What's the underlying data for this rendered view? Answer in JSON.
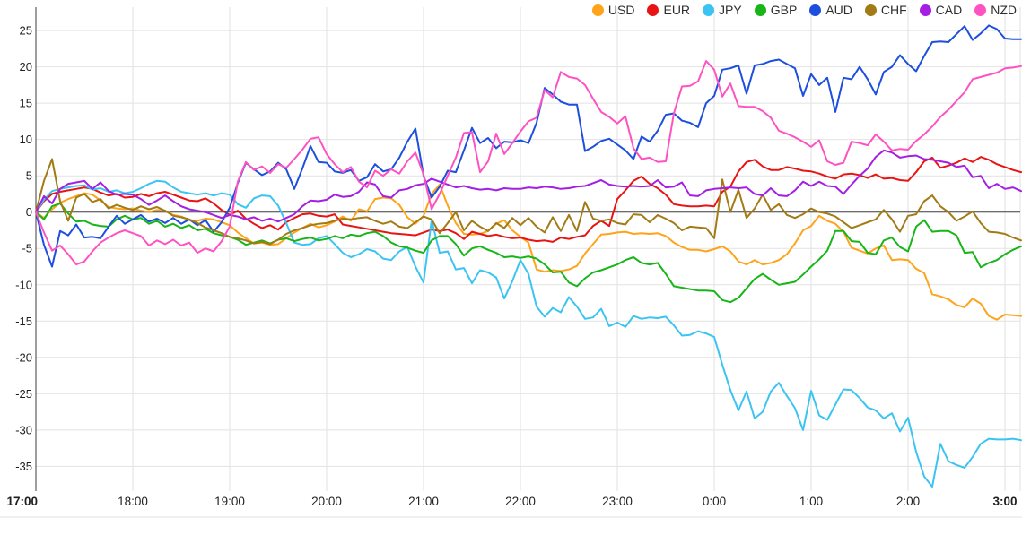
{
  "page": {
    "background": "#ffffff"
  },
  "colors": {
    "grid": "#e2e2e2",
    "axis": "#3c3c3c",
    "tick_text": "#1f1f1f"
  },
  "chart_data": {
    "type": "line",
    "title": "",
    "xlabel": "",
    "ylabel": "",
    "x_axis": {
      "start_label": "17:00",
      "step_minutes": 5,
      "points_per_hour": 12,
      "tick_labels": [
        "17:00",
        "18:00",
        "19:00",
        "20:00",
        "21:00",
        "22:00",
        "23:00",
        "0:00",
        "1:00",
        "2:00",
        "3:00"
      ],
      "bold_tick_labels": [
        "17:00",
        "3:00"
      ]
    },
    "y_axis": {
      "min": -35,
      "max": 25,
      "tick_step": 5,
      "zero_line": true
    },
    "grid": {
      "horizontal": true,
      "vertical_hourly": true
    },
    "legend_position": "top-right",
    "series": [
      {
        "name": "USD",
        "color": "#ffa319",
        "values": [
          0,
          -0.8,
          0.4,
          1.3,
          1.8,
          2.2,
          2.6,
          2.4,
          1.6,
          0.7,
          0.5,
          0.4,
          0.5,
          0.2,
          0,
          0.3,
          0.2,
          -0.4,
          -0.6,
          -1.1,
          -1.2,
          -0.9,
          -1,
          -1.4,
          -1.8,
          -2.8,
          -3.6,
          -4.3,
          -4.2,
          -4.5,
          -4.4,
          -3.6,
          -2.8,
          -2.2,
          -1.6,
          -2.1,
          -1.8,
          -1.3,
          -0.6,
          -1.2,
          0.4,
          0.1,
          1.8,
          2,
          1.9,
          1,
          -0.7,
          -1.6,
          -0.5,
          2.5,
          3.8,
          0.9,
          -1.5,
          -3,
          -3.1,
          -3,
          -2.6,
          -1.6,
          -1.1,
          -2.5,
          -3.4,
          -4.2,
          -7.9,
          -8.2,
          -8,
          -8.1,
          -7.9,
          -7.4,
          -5.7,
          -4.4,
          -3.1,
          -3,
          -2.8,
          -2.7,
          -3,
          -2.9,
          -3,
          -2.9,
          -3.3,
          -4.2,
          -4.8,
          -5.2,
          -5.2,
          -5.4,
          -5.1,
          -4.7,
          -5.4,
          -6.8,
          -7.2,
          -6.6,
          -7.2,
          -7,
          -6.6,
          -5.8,
          -4.3,
          -2.5,
          -1.9,
          -0.5,
          -1.2,
          -1.6,
          -2.7,
          -4.9,
          -5.3,
          -5.7,
          -5,
          -4.6,
          -6.6,
          -6.5,
          -6.6,
          -7.8,
          -8.4,
          -11.3,
          -11.6,
          -12,
          -12.8,
          -13.1,
          -11.9,
          -12.6,
          -14.3,
          -14.8,
          -14.1,
          -14.2,
          -14.3
        ]
      },
      {
        "name": "EUR",
        "color": "#e81414",
        "values": [
          0,
          1.5,
          2.5,
          2.8,
          3,
          3.2,
          3.4,
          3.2,
          2.7,
          2.3,
          2.5,
          2,
          2.1,
          2.5,
          2.2,
          2.6,
          2.8,
          2.4,
          2,
          1.6,
          1.5,
          1.9,
          1.2,
          0.3,
          -0.4,
          0.2,
          -0.9,
          -1.6,
          -2.2,
          -1.8,
          -2.4,
          -1.4,
          -0.8,
          -0.3,
          -0.2,
          -0.5,
          -0.6,
          -0.3,
          -1.7,
          -1.9,
          -2.1,
          -2.3,
          -2.5,
          -2.7,
          -2.9,
          -3,
          -3.1,
          -3.2,
          -2.8,
          -2.4,
          -2.6,
          -2.4,
          -2.9,
          -3.7,
          -2.7,
          -3,
          -3.3,
          -3.1,
          -3.4,
          -3.6,
          -3.5,
          -3.8,
          -4,
          -3.9,
          -4.1,
          -3.5,
          -3.7,
          -3.4,
          -3.2,
          -1.9,
          -1.2,
          -1.9,
          1.8,
          3,
          4.3,
          4.9,
          3.9,
          3.3,
          2.4,
          1.1,
          0.9,
          0.8,
          0.8,
          0.9,
          0.8,
          2.8,
          3.5,
          5.6,
          6.9,
          7.2,
          6.3,
          5.8,
          5.8,
          6.2,
          6,
          5.7,
          5.6,
          5.3,
          4.9,
          4.6,
          5.2,
          5.3,
          5.1,
          4.7,
          5.2,
          4.6,
          4.7,
          4.4,
          4.3,
          5.5,
          7,
          7.5,
          6.1,
          6.4,
          6.8,
          7.4,
          6.9,
          7.6,
          7.2,
          6.6,
          6.2,
          5.8,
          5.5
        ]
      },
      {
        "name": "JPY",
        "color": "#3bc4f2",
        "values": [
          0,
          1.7,
          2.9,
          3.2,
          3.4,
          3.6,
          3.7,
          3.1,
          3.3,
          2.8,
          3,
          2.6,
          2.8,
          3.3,
          3.9,
          4.3,
          4.2,
          3.4,
          2.8,
          2.6,
          2.4,
          2.6,
          2.3,
          2.6,
          2.4,
          1.1,
          0.6,
          1.9,
          2.3,
          2.2,
          0.9,
          -1.5,
          -4.2,
          -4.5,
          -4.4,
          -3.6,
          -3.3,
          -4.4,
          -5.6,
          -6.2,
          -5.8,
          -5.1,
          -5.4,
          -6.4,
          -6.6,
          -5.4,
          -4.8,
          -7.5,
          -9.7,
          -1.1,
          -5.6,
          -5.4,
          -7.9,
          -7.7,
          -9.8,
          -8,
          -8.3,
          -9,
          -11.9,
          -9.5,
          -6.6,
          -8.5,
          -13,
          -14.4,
          -13.2,
          -13.8,
          -11.7,
          -13,
          -14.7,
          -14.5,
          -13.3,
          -15.7,
          -15.2,
          -15.8,
          -14.3,
          -14.7,
          -14.5,
          -14.6,
          -14.4,
          -15.6,
          -17,
          -16.9,
          -16.4,
          -16.7,
          -17.2,
          -21,
          -24.5,
          -27.3,
          -24.7,
          -28.4,
          -27.5,
          -24.7,
          -23.5,
          -25.3,
          -27,
          -30,
          -24.6,
          -28,
          -28.6,
          -26.5,
          -24.4,
          -24.5,
          -25.6,
          -26.9,
          -27.3,
          -28.4,
          -27.7,
          -30.2,
          -28.3,
          -33,
          -36.4,
          -37.8,
          -31.9,
          -34.3,
          -34.8,
          -35.2,
          -33.7,
          -31.9,
          -31.2,
          -31.3,
          -31.3,
          -31.2,
          -31.4
        ]
      },
      {
        "name": "GBP",
        "color": "#17b517",
        "values": [
          0,
          -1,
          0.8,
          1.2,
          -0.2,
          -1.3,
          -1.2,
          -1.7,
          -1.9,
          -2,
          -1,
          -0.5,
          -1,
          -0.8,
          -1.6,
          -1.2,
          -2,
          -1.6,
          -2.2,
          -1.8,
          -2.5,
          -2.3,
          -2.9,
          -3.2,
          -3.4,
          -3.8,
          -4.5,
          -4.2,
          -3.9,
          -4.3,
          -3.8,
          -3.6,
          -4,
          -3.7,
          -3.5,
          -3.9,
          -3.7,
          -3.3,
          -3.6,
          -3.1,
          -3.3,
          -2.9,
          -2.7,
          -3.3,
          -4.2,
          -4.7,
          -4.9,
          -5.3,
          -5.6,
          -3.9,
          -3.3,
          -3.3,
          -4.4,
          -6,
          -5,
          -4.7,
          -5.2,
          -5.6,
          -6.2,
          -6.1,
          -6.3,
          -6.1,
          -6.4,
          -7.2,
          -8.3,
          -8.2,
          -9.7,
          -10.2,
          -9.1,
          -8.3,
          -8,
          -7.6,
          -7.2,
          -6.6,
          -6.2,
          -7,
          -7.2,
          -7,
          -8.5,
          -10.2,
          -10.4,
          -10.6,
          -10.8,
          -10.8,
          -10.9,
          -12.1,
          -12.4,
          -11.8,
          -10.5,
          -9.2,
          -8.5,
          -9.3,
          -10,
          -9.8,
          -9.6,
          -8.6,
          -7.5,
          -6.5,
          -5.3,
          -2.6,
          -2.6,
          -4,
          -4.1,
          -5.6,
          -5.8,
          -3.9,
          -3.5,
          -4.8,
          -5.4,
          -2,
          -1.1,
          -2.7,
          -2.6,
          -2.6,
          -3.2,
          -5.6,
          -5.5,
          -7.6,
          -7,
          -6.6,
          -5.8,
          -5.2,
          -4.7
        ]
      },
      {
        "name": "AUD",
        "color": "#1d4fde",
        "values": [
          0,
          -4.5,
          -7.5,
          -2.6,
          -3.2,
          -1.7,
          -3.5,
          -3.4,
          -3.6,
          -2,
          -0.5,
          -1.6,
          -1,
          -0.4,
          -1.3,
          -0.9,
          -1.5,
          -0.8,
          -1.6,
          -1,
          -1.8,
          -1.1,
          -2.7,
          -1.4,
          0.6,
          4,
          6.8,
          5.9,
          5.1,
          5.6,
          6.8,
          5.9,
          3.2,
          6,
          9.1,
          6.9,
          6.8,
          5.6,
          5.4,
          5.8,
          4.3,
          4.8,
          6.6,
          5.6,
          5.9,
          7.5,
          9.7,
          11.5,
          5,
          2,
          3.5,
          5.7,
          5.5,
          8.5,
          11.6,
          9.5,
          10.2,
          8.8,
          9.7,
          9.6,
          9.9,
          9.5,
          12.3,
          17.1,
          16.2,
          15.2,
          14.8,
          14.8,
          8.4,
          9,
          9.8,
          10.1,
          9.3,
          8.5,
          7.3,
          10.4,
          9.7,
          11.2,
          13.4,
          13.6,
          12.6,
          12.3,
          11.7,
          15,
          16,
          19.6,
          19.8,
          20.2,
          16.3,
          20.2,
          20.4,
          20.8,
          21,
          20.4,
          19.8,
          16,
          19,
          17.5,
          18.5,
          13.8,
          18.5,
          18.3,
          20,
          18.3,
          16.2,
          19.3,
          20,
          21.6,
          20.4,
          19.4,
          21.5,
          23.4,
          23.5,
          23.4,
          24.5,
          25.6,
          23.7,
          24.6,
          25.7,
          25.2,
          23.9,
          23.8,
          23.8
        ]
      },
      {
        "name": "CHF",
        "color": "#a27b16",
        "values": [
          0,
          4.3,
          7.3,
          1.5,
          -1.2,
          2,
          2.5,
          1.4,
          1.8,
          0.5,
          1,
          0.6,
          0.3,
          0.8,
          0.4,
          0.7,
          0.2,
          -0.5,
          -0.7,
          -1,
          -1.5,
          -2.1,
          -2.5,
          -2.9,
          -3.4,
          -3.6,
          -3.9,
          -4.3,
          -4.1,
          -4.4,
          -3.8,
          -3,
          -2.5,
          -2.2,
          -1.8,
          -1.6,
          -1.5,
          -1.2,
          -0.9,
          -1,
          -0.8,
          -0.7,
          -1.2,
          -1.6,
          -1.3,
          -2,
          -2.2,
          -1.4,
          -0.6,
          -1,
          -2.9,
          -1.5,
          0,
          -2.5,
          -1.2,
          -2,
          -2.6,
          -1.5,
          -2.2,
          -0.8,
          -1.8,
          -0.8,
          -2,
          -2.8,
          -0.7,
          -2.6,
          -0.4,
          -2.6,
          1.4,
          -0.9,
          -1.2,
          -1,
          -1.5,
          -1.7,
          -0.3,
          -0.4,
          -1.4,
          -0.4,
          -0.9,
          -1.5,
          -2.5,
          -2,
          -2.1,
          -2.2,
          -3.6,
          4.5,
          0,
          3.1,
          -0.8,
          0.5,
          2.4,
          0.3,
          1.1,
          -0.4,
          -0.8,
          -0.3,
          0.5,
          0,
          -0.2,
          -0.6,
          -1.4,
          -2.2,
          -1.8,
          -1.4,
          -1,
          0.3,
          -1,
          -2.7,
          -0.5,
          -0.3,
          1.5,
          2.3,
          0.8,
          0,
          -1.2,
          -0.6,
          0.1,
          -1.5,
          -2.7,
          -2.8,
          -3,
          -3.5,
          -3.9
        ]
      },
      {
        "name": "CAD",
        "color": "#a41ee4",
        "values": [
          0,
          2.2,
          1.2,
          3.2,
          3.9,
          4.1,
          4.3,
          3.2,
          4.1,
          2.9,
          2.4,
          2.5,
          2.4,
          1.8,
          1,
          1.6,
          2.3,
          1.5,
          0.8,
          0.4,
          0.2,
          0,
          -0.4,
          -0.8,
          -0.4,
          -0.6,
          -1,
          -0.7,
          -1.2,
          -0.9,
          -1.3,
          -0.8,
          -0.3,
          0.8,
          1.6,
          1.5,
          1.7,
          2.4,
          2.1,
          2.2,
          2.8,
          4.1,
          3.8,
          2.2,
          2,
          3,
          3.2,
          3.7,
          3.9,
          4.6,
          4.2,
          3.8,
          3.4,
          3.6,
          3.3,
          3.1,
          3.2,
          3,
          3.3,
          3.2,
          3.2,
          3.4,
          3.3,
          3.5,
          3.4,
          3.2,
          3.3,
          3.5,
          3.6,
          4,
          4.4,
          3.8,
          3.6,
          3.5,
          3.6,
          3.5,
          3.6,
          4.4,
          3.4,
          3.5,
          4.1,
          2.3,
          2.2,
          3,
          3.2,
          3.3,
          3.4,
          3.3,
          3.4,
          2.5,
          2.3,
          3.3,
          2.3,
          2.2,
          3,
          4.2,
          3.6,
          4.2,
          3.6,
          3.5,
          2.5,
          3.8,
          5,
          6,
          7.6,
          8.5,
          8.2,
          7.5,
          7.7,
          7.8,
          7.3,
          7.2,
          7,
          6.8,
          6.2,
          6.4,
          4.8,
          5,
          3.3,
          3.9,
          3.2,
          3.4,
          2.9
        ]
      },
      {
        "name": "NZD",
        "color": "#ff52c2",
        "values": [
          0,
          -2.8,
          -5.3,
          -4.6,
          -5.8,
          -7.2,
          -6.8,
          -5.4,
          -4.2,
          -3.5,
          -2.9,
          -2.5,
          -2.9,
          -3.3,
          -4.6,
          -3.9,
          -4.4,
          -3.8,
          -4.6,
          -4.2,
          -5.6,
          -5,
          -5.4,
          -4,
          -2,
          4.2,
          6.9,
          5.8,
          6.3,
          5.4,
          6.6,
          6.1,
          7.3,
          8.6,
          10.1,
          10.3,
          8,
          6.6,
          5.5,
          6.2,
          4.2,
          3.4,
          5.7,
          5,
          5.9,
          5.3,
          7,
          8.2,
          5.2,
          0.4,
          2.5,
          5,
          7.5,
          10.9,
          11,
          5.5,
          7,
          10.8,
          8,
          9.5,
          11.1,
          12.5,
          13,
          16.8,
          15.8,
          19.3,
          18.6,
          18.4,
          17.5,
          15.6,
          13.8,
          13.1,
          12.2,
          13.2,
          8.8,
          7.3,
          7.5,
          6.9,
          7,
          13.6,
          17.3,
          17.4,
          18,
          20.8,
          19.6,
          15.9,
          17.7,
          14.6,
          14.5,
          14.5,
          13.9,
          13,
          11.2,
          10.8,
          10.3,
          9.7,
          9,
          9.9,
          7,
          6.5,
          6.8,
          9.7,
          9.5,
          9.2,
          10.7,
          9.7,
          8.5,
          8.7,
          8.6,
          9.8,
          10.7,
          11.8,
          13.1,
          14.1,
          15.3,
          16.5,
          18.3,
          18.6,
          18.9,
          19.2,
          19.8,
          19.9,
          20.1
        ]
      }
    ]
  }
}
